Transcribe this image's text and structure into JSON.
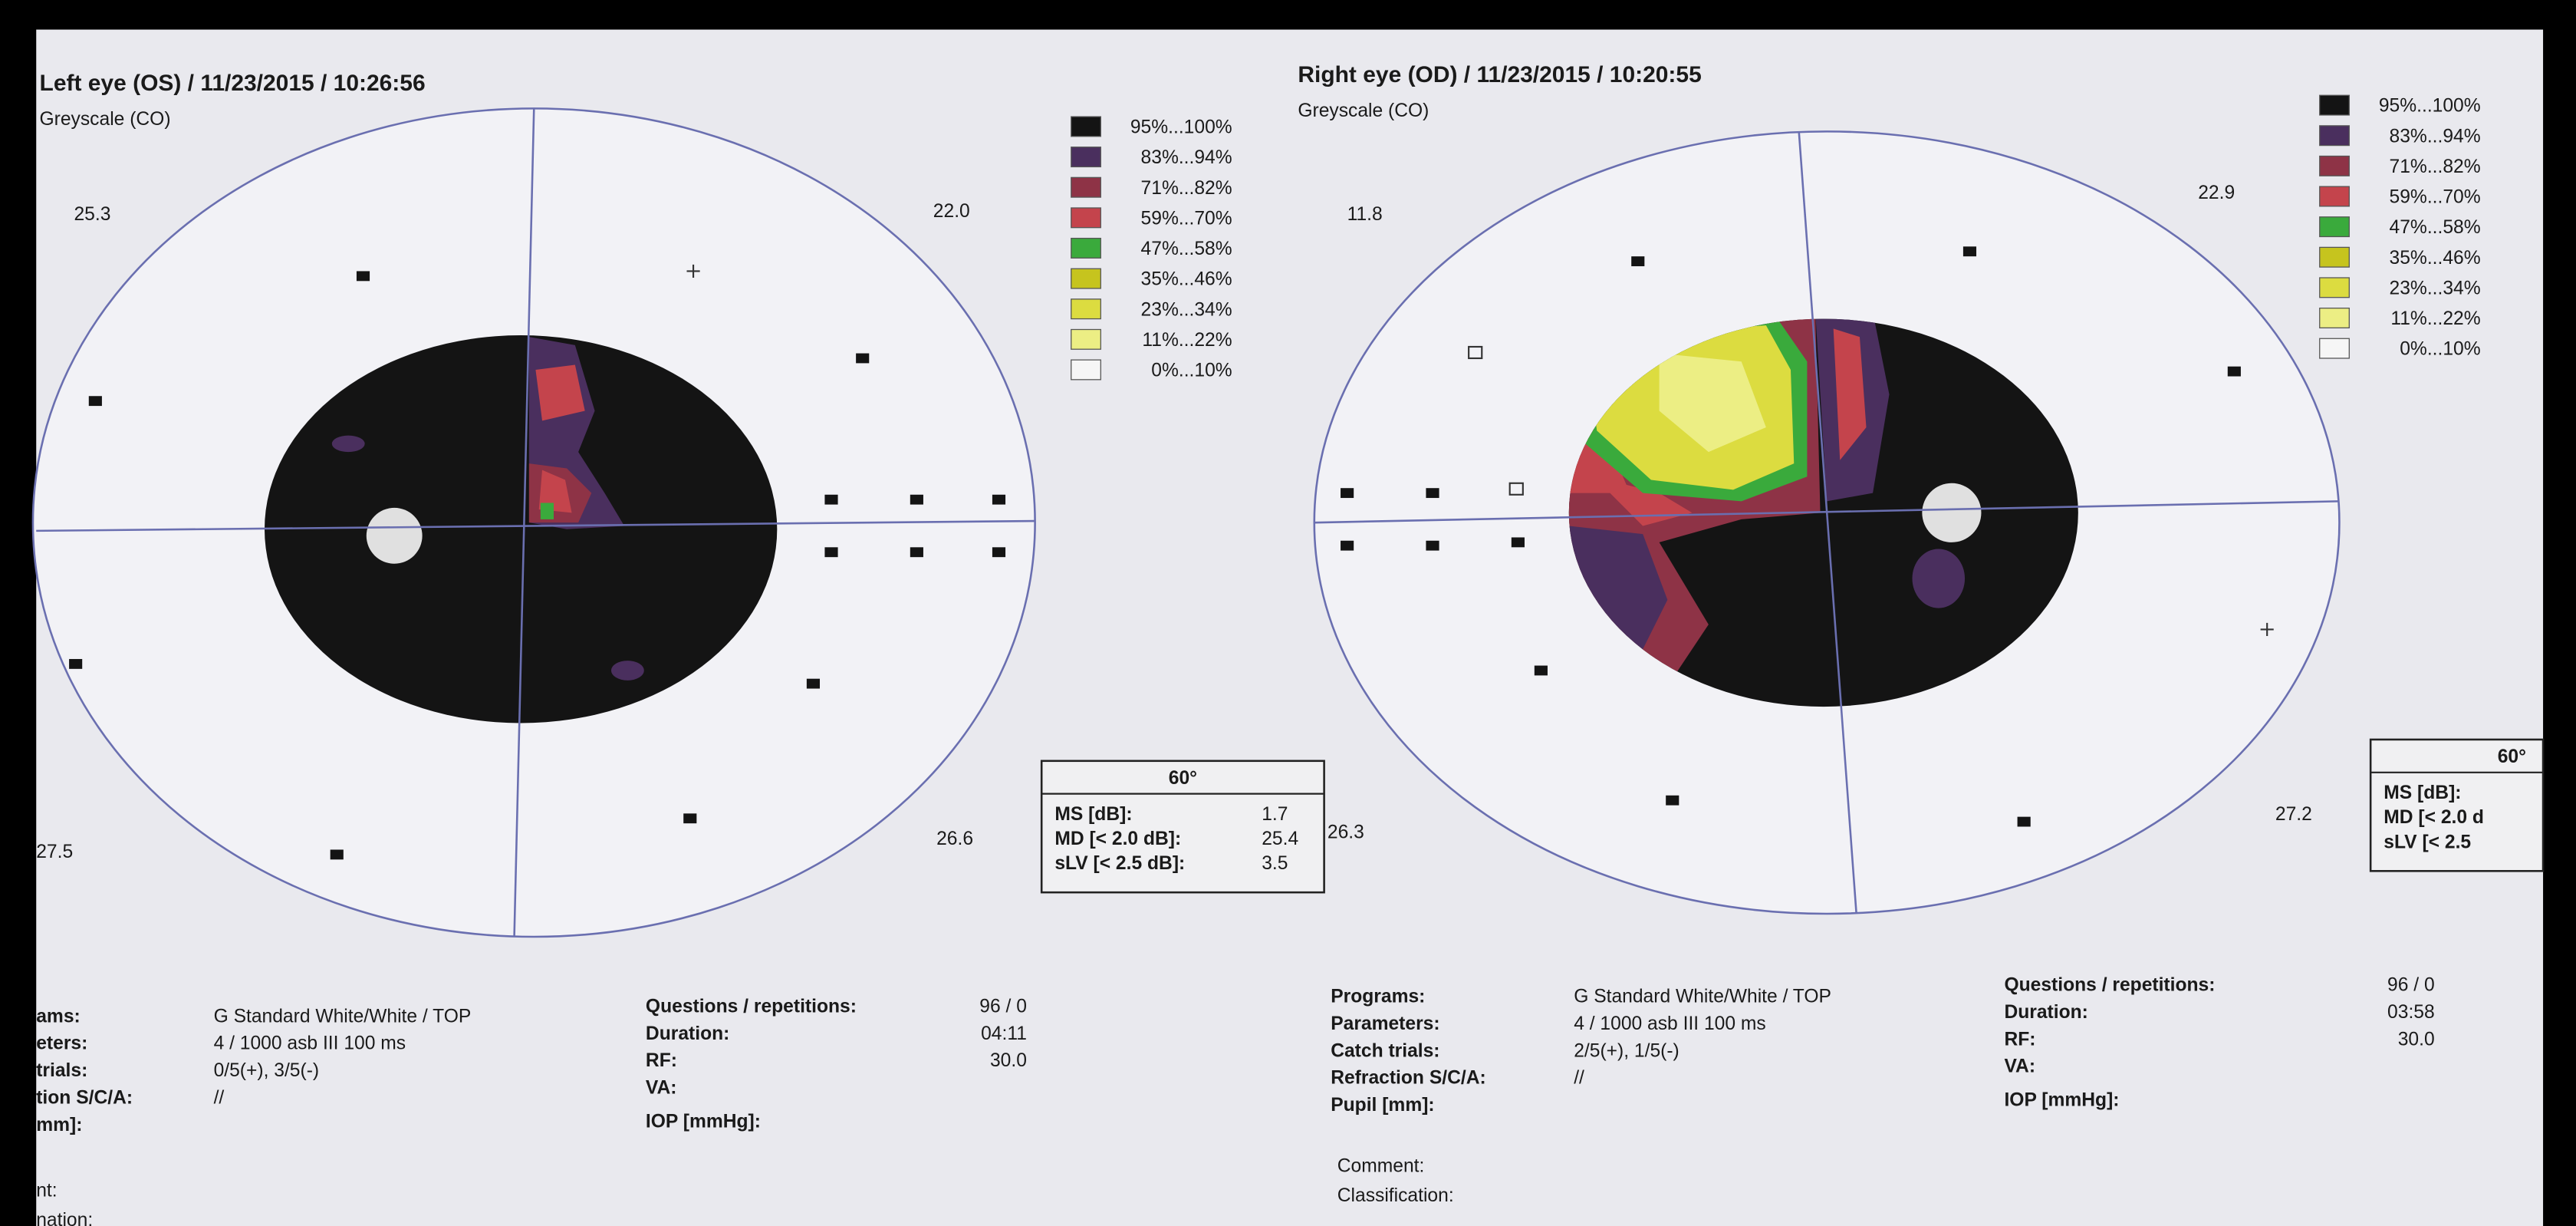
{
  "panels": [
    {
      "title": "Left eye (OS) / 11/23/2015 / 10:26:56",
      "subtitle": "Greyscale (CO)",
      "legend": [
        {
          "label": "95%...100%",
          "color": "#141414"
        },
        {
          "label": "83%...94%",
          "color": "#4a2f5e"
        },
        {
          "label": "71%...82%",
          "color": "#8e3346"
        },
        {
          "label": "59%...70%",
          "color": "#c4444c"
        },
        {
          "label": "47%...58%",
          "color": "#3aaa3c"
        },
        {
          "label": "35%...46%",
          "color": "#c6c41e"
        },
        {
          "label": "23%...34%",
          "color": "#dcdc40"
        },
        {
          "label": "11%...22%",
          "color": "#ecee84"
        },
        {
          "label": "0%...10%",
          "color": "#f6f6f6"
        }
      ],
      "quadrants": [
        "25.3",
        "22.0",
        "27.5",
        "26.6"
      ],
      "stats": {
        "header": "60°",
        "rows": [
          {
            "label": "MS [dB]:",
            "value": "1.7"
          },
          {
            "label": "MD [< 2.0 dB]:",
            "value": "25.4"
          },
          {
            "label": "sLV [< 2.5 dB]:",
            "value": "3.5"
          }
        ]
      },
      "fields": [
        {
          "label": "ams:",
          "value": "G Standard   White/White / TOP"
        },
        {
          "label": "eters:",
          "value": "4  / 1000 asb III 100 ms"
        },
        {
          "label": "trials:",
          "value": "0/5(+), 3/5(-)"
        },
        {
          "label": "tion S/C/A:",
          "value": "//"
        },
        {
          "label": "mm]:"
        }
      ],
      "info": [
        {
          "label": "Questions / repetitions:",
          "value": "96 / 0"
        },
        {
          "label": "Duration:",
          "value": "04:11"
        },
        {
          "label": "RF:",
          "value": "30.0"
        },
        {
          "label": "VA:"
        },
        {
          "label": "IOP [mmHg]:"
        }
      ],
      "footer": [
        "nt:",
        "nation:"
      ]
    },
    {
      "title": "Right eye (OD) / 11/23/2015 / 10:20:55",
      "subtitle": "Greyscale (CO)",
      "legend": [
        {
          "label": "95%...100%",
          "color": "#141414"
        },
        {
          "label": "83%...94%",
          "color": "#4a2f5e"
        },
        {
          "label": "71%...82%",
          "color": "#8e3346"
        },
        {
          "label": "59%...70%",
          "color": "#c4444c"
        },
        {
          "label": "47%...58%",
          "color": "#3aaa3c"
        },
        {
          "label": "35%...46%",
          "color": "#c6c41e"
        },
        {
          "label": "23%...34%",
          "color": "#dcdc40"
        },
        {
          "label": "11%...22%",
          "color": "#ecee84"
        },
        {
          "label": "0%...10%",
          "color": "#f6f6f6"
        }
      ],
      "quadrants": [
        "11.8",
        "22.9",
        "26.3",
        "27.2"
      ],
      "stats": {
        "header": "60°",
        "rows": [
          {
            "label": "MS [dB]:"
          },
          {
            "label": "MD [< 2.0 d"
          },
          {
            "label": "sLV [< 2.5"
          }
        ]
      },
      "fields": [
        {
          "label": "Programs:",
          "value": "G Standard   White/White / TOP"
        },
        {
          "label": "Parameters:",
          "value": "4  / 1000 asb III 100 ms"
        },
        {
          "label": "Catch trials:",
          "value": "2/5(+), 1/5(-)"
        },
        {
          "label": "Refraction S/C/A:",
          "value": "//"
        },
        {
          "label": "Pupil [mm]:"
        }
      ],
      "info": [
        {
          "label": "Questions / repetitions:",
          "value": "96 / 0"
        },
        {
          "label": "Duration:",
          "value": "03:58"
        },
        {
          "label": "RF:",
          "value": "30.0"
        },
        {
          "label": "VA:"
        },
        {
          "label": "IOP [mmHg]:"
        }
      ],
      "footer": [
        "Comment:",
        "Classification:"
      ]
    }
  ]
}
